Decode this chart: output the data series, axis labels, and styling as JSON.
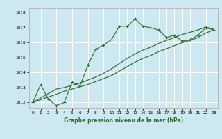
{
  "title": "Graphe pression niveau de la mer (hPa)",
  "background_color": "#cde8f0",
  "grid_color": "#ffffff",
  "line_color": "#2d6a2d",
  "xlim": [
    -0.5,
    23.5
  ],
  "ylim": [
    1011.6,
    1018.3
  ],
  "yticks": [
    1012,
    1013,
    1014,
    1015,
    1016,
    1017,
    1018
  ],
  "xticks": [
    0,
    1,
    2,
    3,
    4,
    5,
    6,
    7,
    8,
    9,
    10,
    11,
    12,
    13,
    14,
    15,
    16,
    17,
    18,
    19,
    20,
    21,
    22,
    23
  ],
  "series1_x": [
    0,
    1,
    2,
    3,
    4,
    5,
    6,
    7,
    8,
    9,
    10,
    11,
    12,
    13,
    14,
    15,
    16,
    17,
    18,
    19,
    20,
    21,
    22,
    23
  ],
  "series1_y": [
    1012.0,
    1013.2,
    1012.2,
    1011.8,
    1012.0,
    1013.35,
    1013.1,
    1014.5,
    1015.55,
    1015.85,
    1016.2,
    1017.1,
    1017.1,
    1017.6,
    1017.1,
    1017.0,
    1016.85,
    1016.35,
    1016.5,
    1016.1,
    1016.2,
    1016.5,
    1017.0,
    1016.85
  ],
  "series2_x": [
    0,
    3,
    4,
    5,
    6,
    7,
    8,
    9,
    10,
    11,
    12,
    13,
    14,
    15,
    16,
    17,
    18,
    19,
    20,
    21,
    22,
    23
  ],
  "series2_y": [
    1012.0,
    1012.55,
    1012.75,
    1012.9,
    1013.05,
    1013.2,
    1013.4,
    1013.6,
    1013.8,
    1014.1,
    1014.4,
    1014.7,
    1014.95,
    1015.15,
    1015.4,
    1015.6,
    1015.8,
    1016.0,
    1016.15,
    1016.35,
    1016.65,
    1016.85
  ],
  "series3_x": [
    0,
    3,
    4,
    5,
    6,
    7,
    8,
    9,
    10,
    11,
    12,
    13,
    14,
    15,
    16,
    17,
    18,
    19,
    20,
    21,
    22,
    23
  ],
  "series3_y": [
    1012.0,
    1012.9,
    1013.0,
    1013.15,
    1013.3,
    1013.5,
    1013.7,
    1013.95,
    1014.25,
    1014.6,
    1014.95,
    1015.25,
    1015.5,
    1015.7,
    1015.95,
    1016.15,
    1016.35,
    1016.55,
    1016.7,
    1016.85,
    1017.05,
    1016.9
  ],
  "figsize": [
    3.2,
    2.0
  ],
  "dpi": 100
}
